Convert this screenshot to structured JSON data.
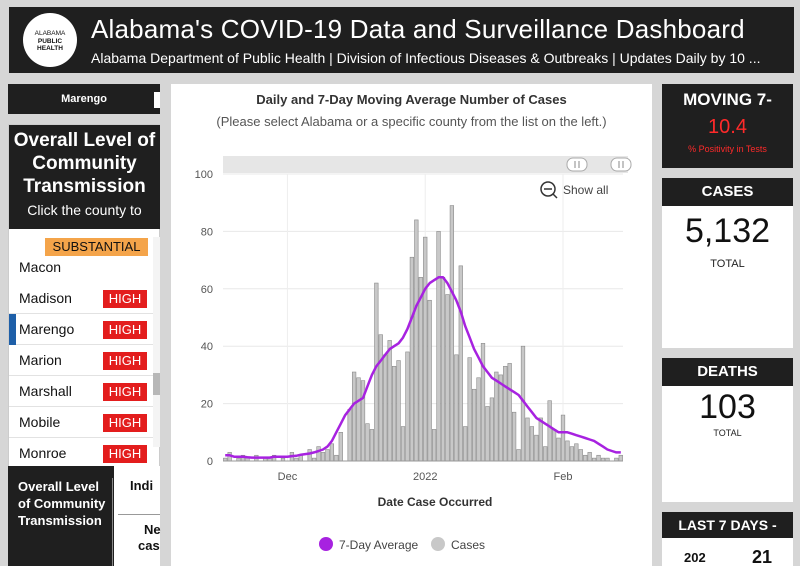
{
  "header": {
    "logo_line1": "ALABAMA",
    "logo_line2": "PUBLIC",
    "logo_line3": "HEALTH",
    "title": "Alabama's COVID-19 Data and Surveillance Dashboard",
    "subtitle": "Alabama Department of Public Health | Division of Infectious Diseases & Outbreaks | Updates Daily by 10 ..."
  },
  "county_select": {
    "value": "Marengo"
  },
  "community": {
    "title": "Overall Level of Community Transmission",
    "instruction": "Click the county to",
    "partial_badge": "SUBSTANTIAL",
    "rows": [
      {
        "county": "Macon",
        "level": ""
      },
      {
        "county": "Madison",
        "level": "HIGH"
      },
      {
        "county": "Marengo",
        "level": "HIGH"
      },
      {
        "county": "Marion",
        "level": "HIGH"
      },
      {
        "county": "Marshall",
        "level": "HIGH"
      },
      {
        "county": "Mobile",
        "level": "HIGH"
      },
      {
        "county": "Monroe",
        "level": "HIGH"
      }
    ]
  },
  "indicators": {
    "col1": "Overall Level of Community Transmission",
    "col2_head": "Indi",
    "col2_line1": "Ne",
    "col2_line2": "cas"
  },
  "chart": {
    "title": "Daily and 7-Day Moving Average Number of Cases",
    "subtitle": "(Please select Alabama or a specific county from the list on the left.)",
    "show_all": "Show all",
    "x_axis_title": "Date Case Occurred",
    "legend_avg": "7-Day Average",
    "legend_cases": "Cases"
  },
  "chart_data": {
    "type": "bar",
    "title": "Daily and 7-Day Moving Average Number of Cases",
    "xlabel": "Date Case Occurred",
    "ylabel": "",
    "ylim": [
      0,
      100
    ],
    "y_ticks": [
      0,
      20,
      40,
      60,
      80,
      100
    ],
    "x_tick_labels": [
      {
        "label": "Dec",
        "day_index": 14
      },
      {
        "label": "2022",
        "day_index": 45
      },
      {
        "label": "Feb",
        "day_index": 76
      }
    ],
    "series": [
      {
        "name": "Cases",
        "kind": "bar",
        "color": "#c8c8c8",
        "values": [
          1,
          3,
          0,
          1,
          2,
          1,
          0,
          2,
          0,
          1,
          1,
          2,
          0,
          1,
          0,
          3,
          1,
          2,
          0,
          4,
          1,
          5,
          3,
          4,
          6,
          2,
          10,
          0,
          18,
          31,
          29,
          28,
          13,
          11,
          62,
          44,
          37,
          42,
          33,
          35,
          12,
          38,
          71,
          84,
          64,
          78,
          56,
          11,
          80,
          64,
          58,
          89,
          37,
          68,
          12,
          36,
          25,
          29,
          41,
          19,
          22,
          31,
          30,
          33,
          34,
          17,
          4,
          40,
          15,
          12,
          9,
          15,
          5,
          21,
          11,
          8,
          16,
          7,
          5,
          6,
          4,
          2,
          3,
          1,
          2,
          1,
          1,
          0,
          1,
          2
        ]
      },
      {
        "name": "7-Day Average",
        "kind": "line",
        "color": "#a722e0",
        "values": [
          2,
          2,
          1.5,
          1.5,
          1.5,
          1.3,
          1.2,
          1.2,
          1.2,
          1.2,
          1.2,
          1.5,
          1.5,
          1.5,
          1.5,
          1.7,
          1.8,
          2.2,
          2.4,
          2.6,
          3,
          3.5,
          4,
          5,
          7,
          10,
          13,
          16,
          18,
          20,
          21,
          22,
          26,
          30,
          33,
          35,
          37,
          39,
          40,
          41,
          43,
          46,
          50,
          54,
          57,
          60,
          62,
          63,
          64,
          64,
          62,
          59,
          56,
          52,
          47,
          43,
          39,
          36,
          33,
          31,
          29,
          28,
          27,
          26,
          25,
          24,
          23,
          21,
          19,
          17,
          15,
          14,
          13,
          12,
          11,
          10,
          10,
          10,
          9.5,
          9,
          8.5,
          8,
          7.5,
          7,
          6,
          5,
          4,
          3.5,
          3,
          3
        ]
      }
    ],
    "legend": [
      "7-Day Average",
      "Cases"
    ]
  },
  "stats": {
    "moving_label": "MOVING 7-",
    "positivity_value": "10.4",
    "positivity_label": "% Positivity in Tests",
    "cases_label": "CASES",
    "cases_value": "5,132",
    "cases_sub": "TOTAL",
    "deaths_label": "DEATHS",
    "deaths_value": "103",
    "deaths_sub": "TOTAL",
    "last7_label": "LAST 7 DAYS -",
    "last7_a": "202",
    "last7_b": "21"
  },
  "colors": {
    "accent_red": "#e31d1d",
    "substantial": "#f4a44a",
    "avg_line": "#a722e0",
    "bars": "#c8c8c8",
    "dark": "#1f1f1f"
  }
}
